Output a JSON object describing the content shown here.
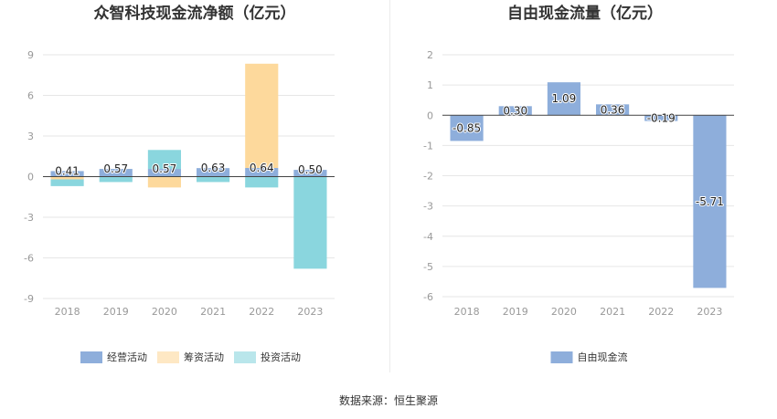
{
  "source_label": "数据来源：恒生聚源",
  "chart_data": [
    {
      "type": "bar",
      "stacked": true,
      "title": "众智科技现金流净额（亿元）",
      "categories": [
        "2018",
        "2019",
        "2020",
        "2021",
        "2022",
        "2023"
      ],
      "ylim": [
        -9,
        9
      ],
      "yticks": [
        9,
        6,
        3,
        0,
        -3,
        -6,
        -9
      ],
      "grid": true,
      "legend_position": "bottom",
      "series": [
        {
          "name": "经营活动",
          "color": "#8eaedb",
          "values": [
            0.41,
            0.57,
            0.57,
            0.63,
            0.64,
            0.5
          ],
          "labels": [
            "0.41",
            "0.57",
            "0.57",
            "0.63",
            "0.64",
            "0.50"
          ]
        },
        {
          "name": "筹资活动",
          "color": "#fdd99c",
          "values": [
            -0.2,
            0.0,
            -0.8,
            0.0,
            7.7,
            0.0
          ]
        },
        {
          "name": "投资活动",
          "color": "#8ad6de",
          "values": [
            -0.5,
            -0.4,
            1.4,
            -0.4,
            -0.8,
            -6.8
          ]
        }
      ]
    },
    {
      "type": "bar",
      "title": "自由现金流量（亿元）",
      "categories": [
        "2018",
        "2019",
        "2020",
        "2021",
        "2022",
        "2023"
      ],
      "ylim": [
        -6,
        2
      ],
      "yticks": [
        2,
        1,
        0,
        -1,
        -2,
        -3,
        -4,
        -5,
        -6
      ],
      "grid": true,
      "legend_position": "bottom",
      "series": [
        {
          "name": "自由现金流",
          "color": "#8eaedb",
          "values": [
            -0.85,
            0.3,
            1.09,
            0.36,
            -0.19,
            -5.71
          ],
          "labels": [
            "-0.85",
            "0.30",
            "1.09",
            "0.36",
            "-0.19",
            "-5.71"
          ]
        }
      ]
    }
  ]
}
